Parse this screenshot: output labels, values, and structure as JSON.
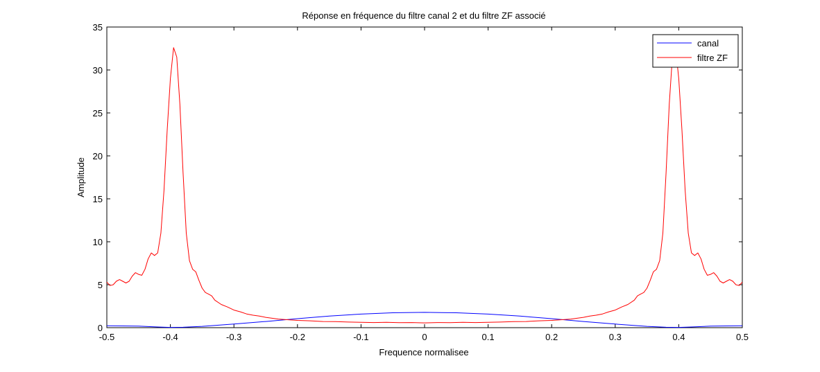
{
  "chart_data": {
    "type": "line",
    "title": "Réponse en fréquence du filtre canal 2 et du filtre ZF associé",
    "xlabel": "Frequence normalisee",
    "ylabel": "Amplitude",
    "xlim": [
      -0.5,
      0.5
    ],
    "ylim": [
      0,
      35
    ],
    "x_ticks": [
      -0.5,
      -0.4,
      -0.3,
      -0.2,
      -0.1,
      0,
      0.1,
      0.2,
      0.3,
      0.4,
      0.5
    ],
    "x_tick_labels": [
      "-0.5",
      "-0.4",
      "-0.3",
      "-0.2",
      "-0.1",
      "0",
      "0.1",
      "0.2",
      "0.3",
      "0.4",
      "0.5"
    ],
    "y_ticks": [
      0,
      5,
      10,
      15,
      20,
      25,
      30,
      35
    ],
    "y_tick_labels": [
      "0",
      "5",
      "10",
      "15",
      "20",
      "25",
      "30",
      "35"
    ],
    "grid": false,
    "legend_position": "top-right",
    "series": [
      {
        "name": "canal",
        "color": "#0000ff",
        "points": [
          [
            -0.5,
            0.22
          ],
          [
            -0.45,
            0.18
          ],
          [
            -0.42,
            0.08
          ],
          [
            -0.4,
            0.03
          ],
          [
            -0.38,
            0.05
          ],
          [
            -0.35,
            0.15
          ],
          [
            -0.3,
            0.42
          ],
          [
            -0.25,
            0.72
          ],
          [
            -0.2,
            1.05
          ],
          [
            -0.15,
            1.35
          ],
          [
            -0.1,
            1.58
          ],
          [
            -0.05,
            1.73
          ],
          [
            0,
            1.78
          ],
          [
            0.05,
            1.73
          ],
          [
            0.1,
            1.58
          ],
          [
            0.15,
            1.35
          ],
          [
            0.2,
            1.05
          ],
          [
            0.25,
            0.72
          ],
          [
            0.3,
            0.42
          ],
          [
            0.35,
            0.15
          ],
          [
            0.38,
            0.05
          ],
          [
            0.4,
            0.03
          ],
          [
            0.42,
            0.08
          ],
          [
            0.45,
            0.18
          ],
          [
            0.5,
            0.22
          ]
        ]
      },
      {
        "name": "filtre ZF",
        "color": "#ff0000",
        "points": [
          [
            -0.5,
            5.3
          ],
          [
            -0.495,
            4.9
          ],
          [
            -0.49,
            5.0
          ],
          [
            -0.485,
            5.4
          ],
          [
            -0.48,
            5.6
          ],
          [
            -0.475,
            5.4
          ],
          [
            -0.47,
            5.2
          ],
          [
            -0.465,
            5.4
          ],
          [
            -0.46,
            6.0
          ],
          [
            -0.455,
            6.4
          ],
          [
            -0.45,
            6.2
          ],
          [
            -0.445,
            6.1
          ],
          [
            -0.44,
            6.8
          ],
          [
            -0.435,
            8.0
          ],
          [
            -0.43,
            8.7
          ],
          [
            -0.425,
            8.4
          ],
          [
            -0.42,
            8.7
          ],
          [
            -0.415,
            11.0
          ],
          [
            -0.41,
            16.0
          ],
          [
            -0.405,
            23.0
          ],
          [
            -0.4,
            29.0
          ],
          [
            -0.395,
            32.6
          ],
          [
            -0.39,
            31.5
          ],
          [
            -0.385,
            26.0
          ],
          [
            -0.38,
            18.0
          ],
          [
            -0.375,
            11.0
          ],
          [
            -0.37,
            7.8
          ],
          [
            -0.365,
            6.8
          ],
          [
            -0.36,
            6.5
          ],
          [
            -0.355,
            5.5
          ],
          [
            -0.35,
            4.6
          ],
          [
            -0.345,
            4.1
          ],
          [
            -0.34,
            3.9
          ],
          [
            -0.335,
            3.7
          ],
          [
            -0.33,
            3.2
          ],
          [
            -0.32,
            2.7
          ],
          [
            -0.31,
            2.4
          ],
          [
            -0.3,
            2.05
          ],
          [
            -0.29,
            1.85
          ],
          [
            -0.28,
            1.6
          ],
          [
            -0.27,
            1.45
          ],
          [
            -0.26,
            1.35
          ],
          [
            -0.25,
            1.2
          ],
          [
            -0.24,
            1.1
          ],
          [
            -0.23,
            1.0
          ],
          [
            -0.22,
            0.95
          ],
          [
            -0.2,
            0.85
          ],
          [
            -0.18,
            0.8
          ],
          [
            -0.16,
            0.72
          ],
          [
            -0.14,
            0.7
          ],
          [
            -0.12,
            0.65
          ],
          [
            -0.1,
            0.63
          ],
          [
            -0.08,
            0.6
          ],
          [
            -0.06,
            0.62
          ],
          [
            -0.04,
            0.58
          ],
          [
            -0.02,
            0.6
          ],
          [
            0,
            0.56
          ],
          [
            0.02,
            0.6
          ],
          [
            0.04,
            0.58
          ],
          [
            0.06,
            0.62
          ],
          [
            0.08,
            0.6
          ],
          [
            0.1,
            0.63
          ],
          [
            0.12,
            0.65
          ],
          [
            0.14,
            0.7
          ],
          [
            0.16,
            0.72
          ],
          [
            0.18,
            0.8
          ],
          [
            0.2,
            0.85
          ],
          [
            0.22,
            0.95
          ],
          [
            0.23,
            1.0
          ],
          [
            0.24,
            1.1
          ],
          [
            0.25,
            1.2
          ],
          [
            0.26,
            1.35
          ],
          [
            0.27,
            1.45
          ],
          [
            0.28,
            1.6
          ],
          [
            0.29,
            1.85
          ],
          [
            0.3,
            2.05
          ],
          [
            0.31,
            2.4
          ],
          [
            0.32,
            2.7
          ],
          [
            0.33,
            3.2
          ],
          [
            0.335,
            3.7
          ],
          [
            0.34,
            3.9
          ],
          [
            0.345,
            4.1
          ],
          [
            0.35,
            4.6
          ],
          [
            0.355,
            5.5
          ],
          [
            0.36,
            6.5
          ],
          [
            0.365,
            6.8
          ],
          [
            0.37,
            7.8
          ],
          [
            0.375,
            11.0
          ],
          [
            0.38,
            18.0
          ],
          [
            0.385,
            26.0
          ],
          [
            0.39,
            31.5
          ],
          [
            0.395,
            32.6
          ],
          [
            0.4,
            29.0
          ],
          [
            0.405,
            23.0
          ],
          [
            0.41,
            16.0
          ],
          [
            0.415,
            11.0
          ],
          [
            0.42,
            8.7
          ],
          [
            0.425,
            8.4
          ],
          [
            0.43,
            8.7
          ],
          [
            0.435,
            8.0
          ],
          [
            0.44,
            6.8
          ],
          [
            0.445,
            6.1
          ],
          [
            0.45,
            6.2
          ],
          [
            0.455,
            6.4
          ],
          [
            0.46,
            6.0
          ],
          [
            0.465,
            5.4
          ],
          [
            0.47,
            5.2
          ],
          [
            0.475,
            5.4
          ],
          [
            0.48,
            5.6
          ],
          [
            0.485,
            5.4
          ],
          [
            0.49,
            5.0
          ],
          [
            0.495,
            4.9
          ],
          [
            0.5,
            5.3
          ]
        ]
      }
    ]
  }
}
